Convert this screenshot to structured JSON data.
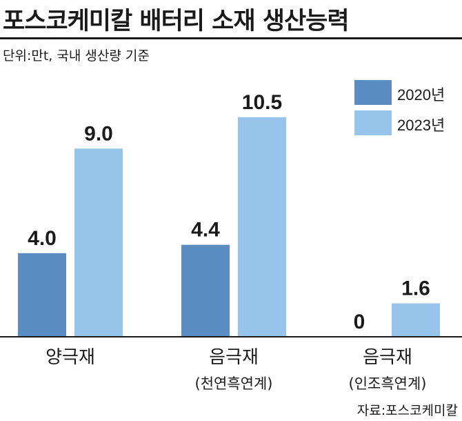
{
  "title": "포스코케미칼 배터리 소재 생산능력",
  "unit_note": "단위:만t, 국내 생산량 기준",
  "source": "자료:포스코케미칼",
  "colors": {
    "series_2020": "#5b8dc2",
    "series_2023": "#96c4ea",
    "text": "#1a1a1a",
    "axis": "#1a1a1a"
  },
  "chart_data": {
    "type": "bar",
    "categories": [
      "양극재",
      "음극재",
      "음극재"
    ],
    "category_sublabels": [
      "",
      "(천연흑연계)",
      "(인조흑연계)"
    ],
    "series": [
      {
        "name": "2020년",
        "values": [
          4.0,
          4.4,
          0
        ],
        "labels": [
          "4.0",
          "4.4",
          "0"
        ]
      },
      {
        "name": "2023년",
        "values": [
          9.0,
          10.5,
          1.6
        ],
        "labels": [
          "9.0",
          "10.5",
          "1.6"
        ]
      }
    ],
    "legend_position": "top-right",
    "grid": false
  }
}
